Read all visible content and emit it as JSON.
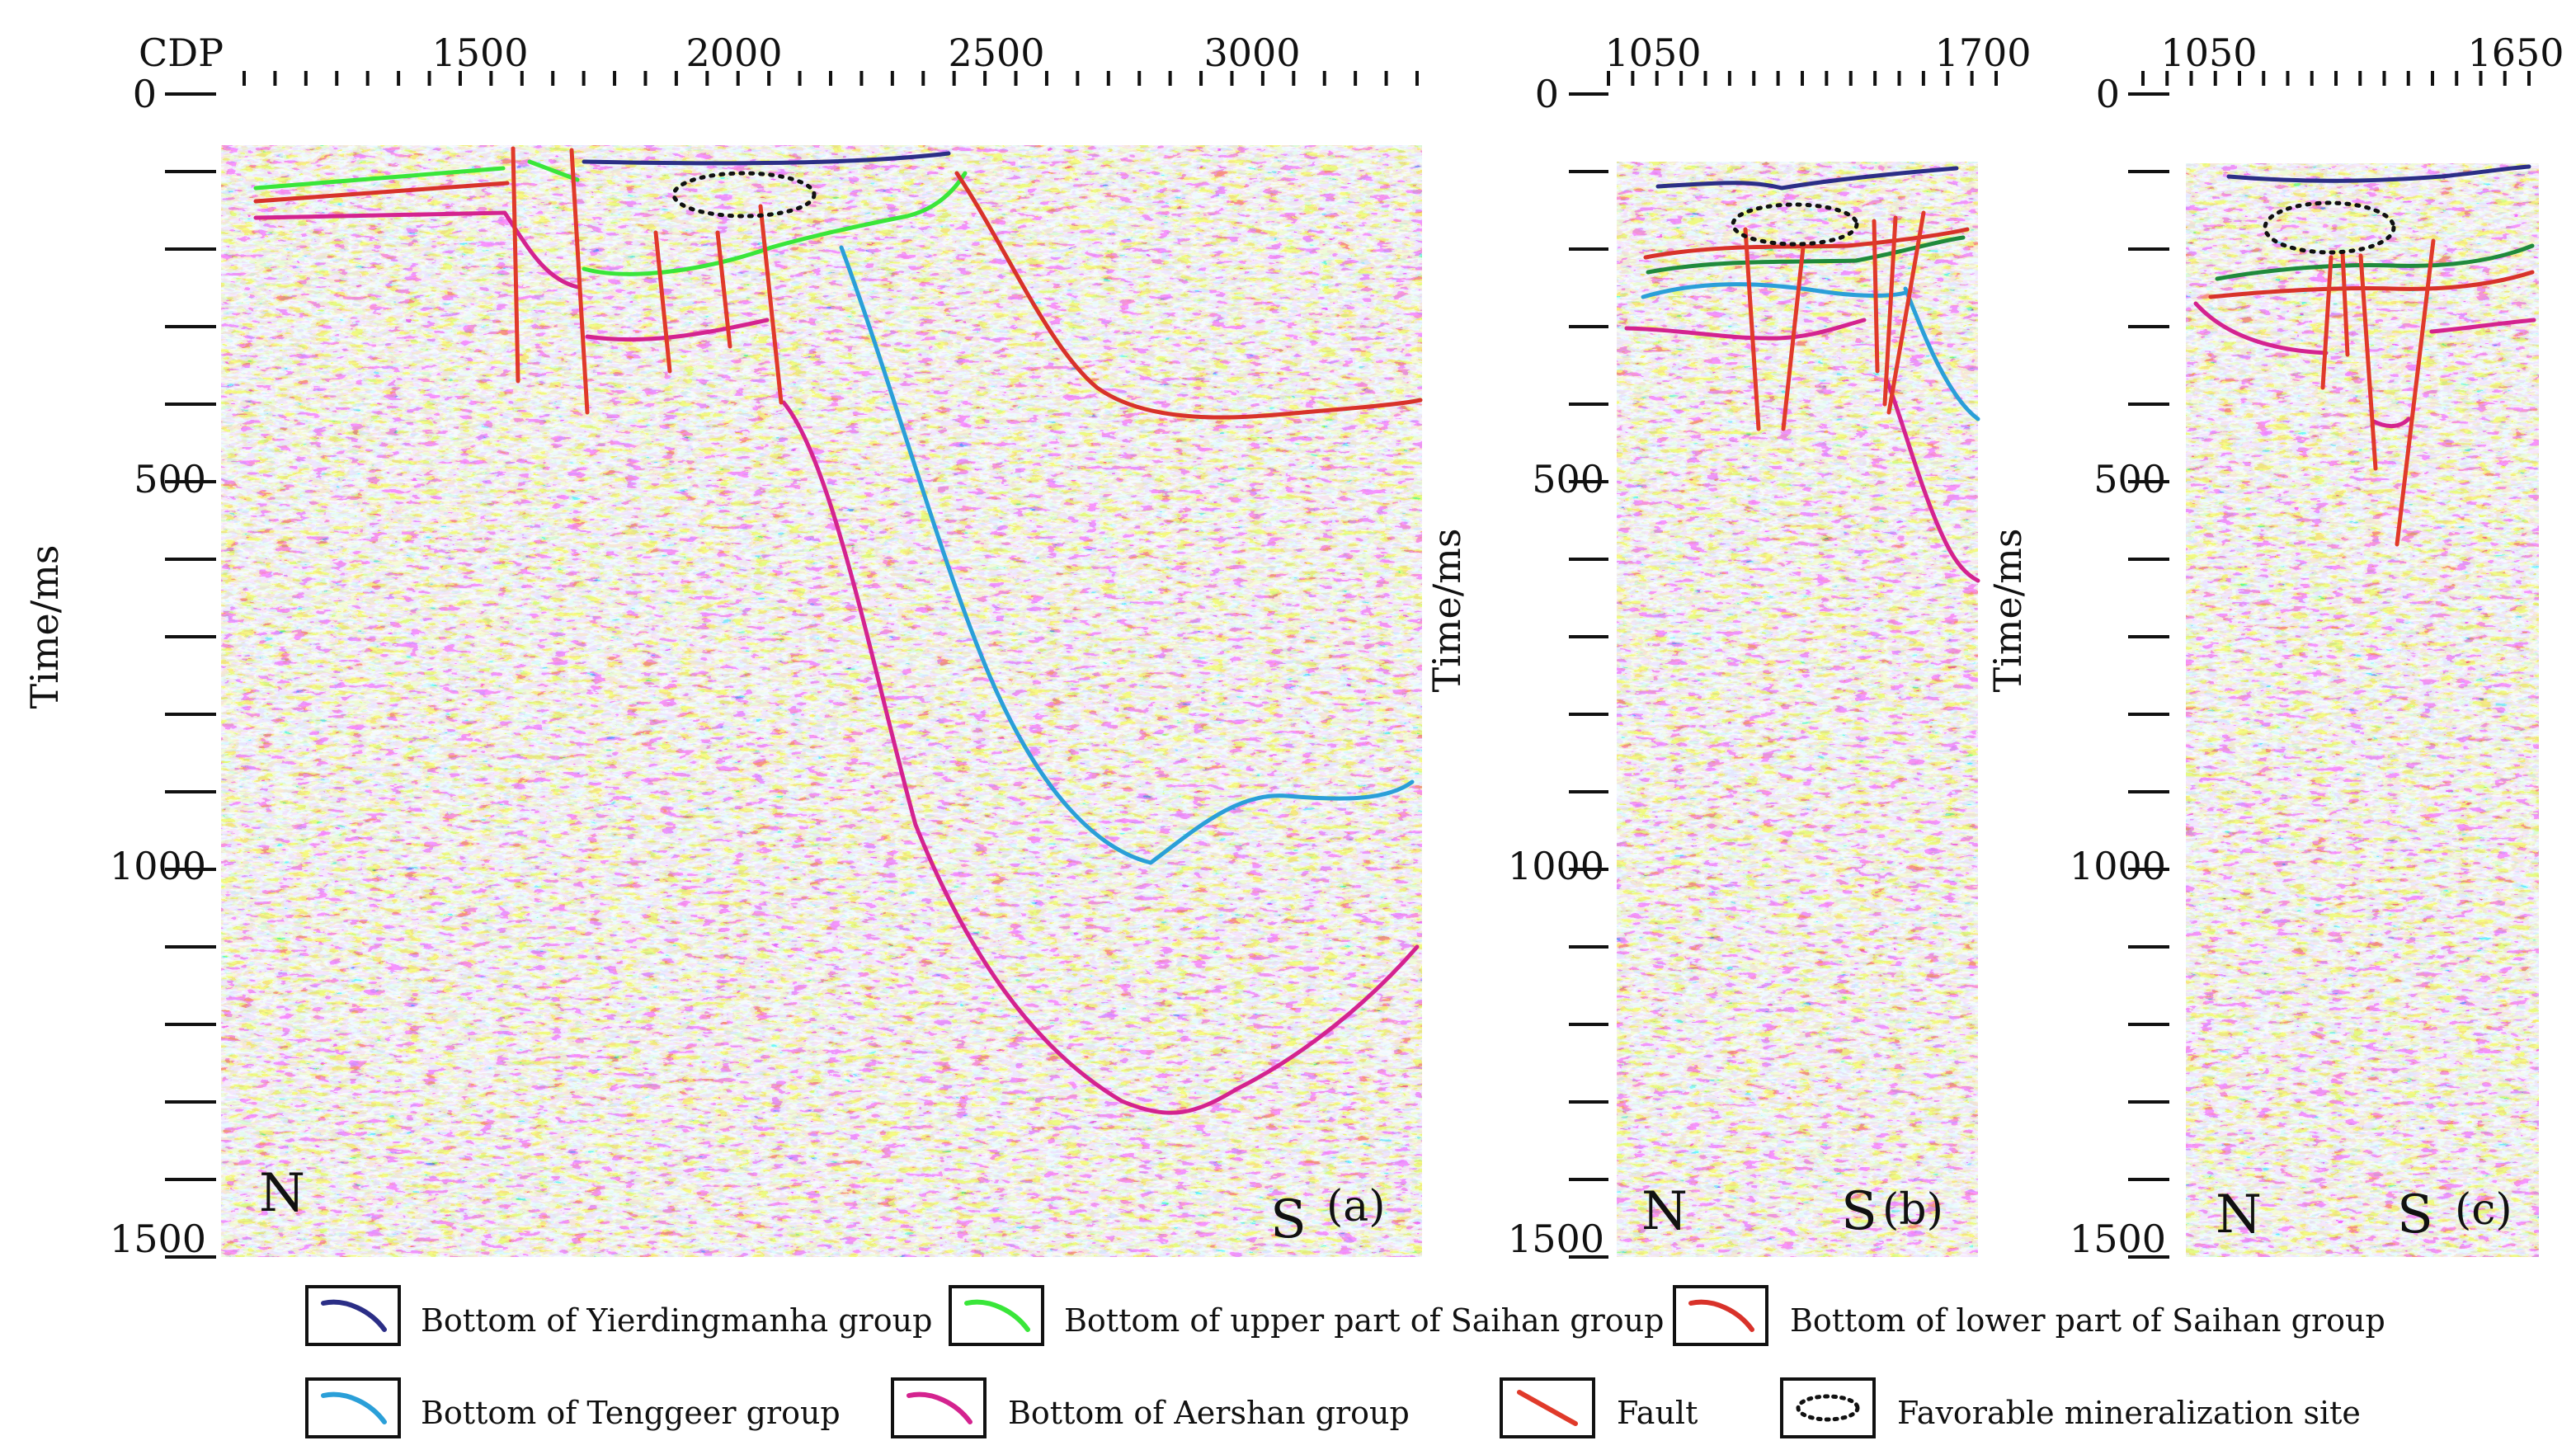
{
  "panels": [
    {
      "id": "a",
      "tag": "(a)",
      "x_axis_label": "CDP",
      "cdp_ticks": [
        "1500",
        "2000",
        "2500",
        "3000"
      ],
      "y_axis_label": "Time/ms",
      "y_ticks": [
        "0",
        "500",
        "1000",
        "1500"
      ],
      "left_end": "N",
      "right_end": "S"
    },
    {
      "id": "b",
      "tag": "(b)",
      "cdp_ticks": [
        "1050",
        "1700"
      ],
      "y_axis_label": "Time/ms",
      "y_ticks": [
        "0",
        "500",
        "1000",
        "1500"
      ],
      "left_end": "N",
      "right_end": "S"
    },
    {
      "id": "c",
      "tag": "(c)",
      "cdp_ticks": [
        "1050",
        "1650"
      ],
      "y_axis_label": "Time/ms",
      "y_ticks": [
        "0",
        "500",
        "1000",
        "1500"
      ],
      "left_end": "N",
      "right_end": "S"
    }
  ],
  "legend": [
    {
      "label": "Bottom of Yierdingmanha group",
      "color": "#2b2e86",
      "symbol": "line"
    },
    {
      "label": "Bottom of upper part of Saihan group",
      "color": "#39e639",
      "symbol": "line"
    },
    {
      "label": "Bottom of lower part of Saihan group",
      "color": "#d8322a",
      "symbol": "line"
    },
    {
      "label": "Bottom of Tenggeer group",
      "color": "#2a9fd8",
      "symbol": "line"
    },
    {
      "label": "Bottom of Aershan group",
      "color": "#d4238f",
      "symbol": "line"
    },
    {
      "label": "Fault",
      "color": "#e03a2a",
      "symbol": "line"
    },
    {
      "label": "Favorable mineralization site",
      "color": "#111111",
      "symbol": "dotted-ellipse"
    }
  ]
}
